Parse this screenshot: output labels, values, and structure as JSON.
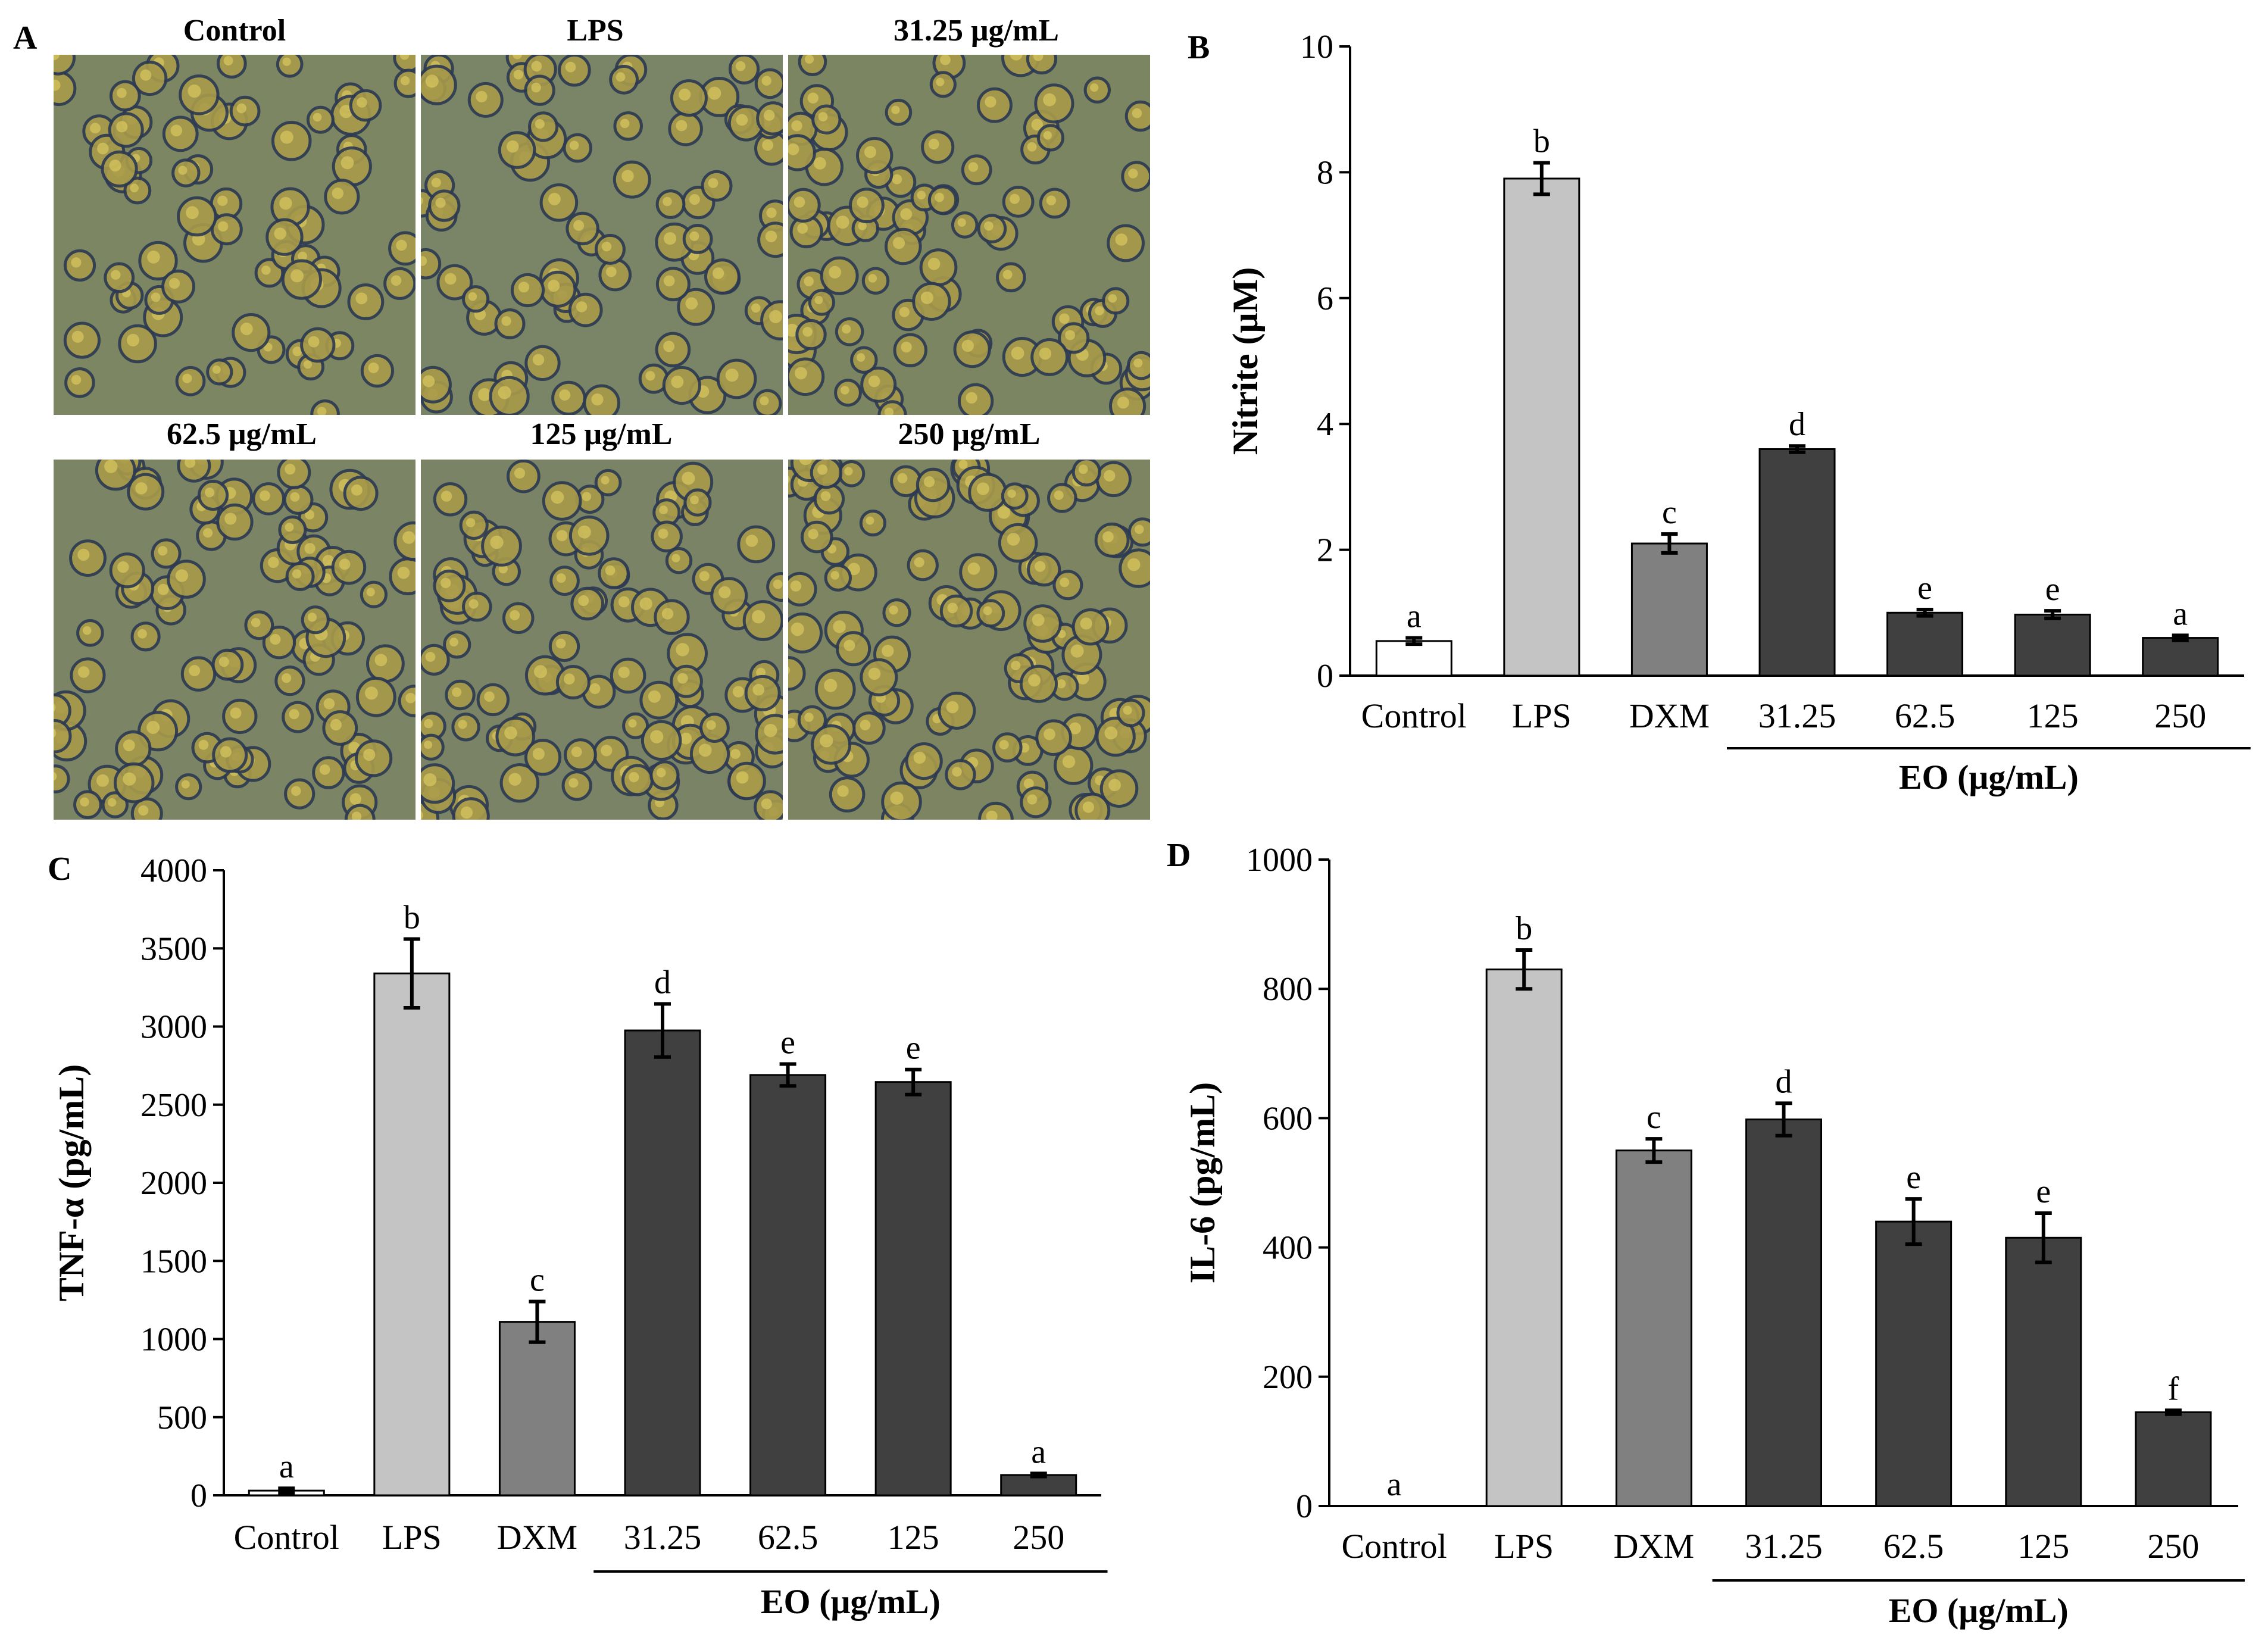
{
  "panel_letters": [
    "A",
    "B",
    "C",
    "D"
  ],
  "panel_a": {
    "images": [
      {
        "label": "Control",
        "bg": "#7d8663"
      },
      {
        "label": "LPS",
        "bg": "#7a8466"
      },
      {
        "label": "31.25 μg/mL",
        "bg": "#7c8562"
      },
      {
        "label": "62.5 μg/mL",
        "bg": "#7b8464"
      },
      {
        "label": "125 μg/mL",
        "bg": "#7a8365"
      },
      {
        "label": "250 μg/mL",
        "bg": "#7c8461"
      }
    ]
  },
  "colors": {
    "control": "#ffffff",
    "lps": "#c4c4c4",
    "dxm": "#808080",
    "eo": "#404040",
    "cell_fill": "#a89a4a",
    "cell_edge": "#2d3a52"
  },
  "chart_data": [
    {
      "panel": "B",
      "type": "bar",
      "categories": [
        "Control",
        "LPS",
        "DXM",
        "31.25",
        "62.5",
        "125",
        "250"
      ],
      "values": [
        0.55,
        7.9,
        2.1,
        3.6,
        1.0,
        0.97,
        0.6
      ],
      "errors": [
        0.05,
        0.25,
        0.15,
        0.05,
        0.05,
        0.06,
        0.04
      ],
      "significance": [
        "a",
        "b",
        "c",
        "d",
        "e",
        "e",
        "a"
      ],
      "ylabel": "Nitrite (μM)",
      "ylim": [
        0,
        10
      ],
      "yticks": [
        0,
        2,
        4,
        6,
        8,
        10
      ],
      "group_label": "EO (μg/mL)"
    },
    {
      "panel": "C",
      "type": "bar",
      "categories": [
        "Control",
        "LPS",
        "DXM",
        "31.25",
        "62.5",
        "125",
        "250"
      ],
      "values": [
        30,
        3340,
        1110,
        2975,
        2690,
        2645,
        130
      ],
      "errors": [
        15,
        220,
        130,
        170,
        70,
        80,
        10
      ],
      "significance": [
        "a",
        "b",
        "c",
        "d",
        "e",
        "e",
        "a"
      ],
      "ylabel": "TNF-α (pg/mL)",
      "ylim": [
        0,
        4000
      ],
      "yticks": [
        0,
        500,
        1000,
        1500,
        2000,
        2500,
        3000,
        3500,
        4000
      ],
      "group_label": "EO (μg/mL)"
    },
    {
      "panel": "D",
      "type": "bar",
      "categories": [
        "Control",
        "LPS",
        "DXM",
        "31.25",
        "62.5",
        "125",
        "250"
      ],
      "values": [
        0,
        830,
        550,
        598,
        440,
        415,
        145
      ],
      "errors": [
        0,
        30,
        18,
        25,
        35,
        38,
        3
      ],
      "significance": [
        "a",
        "b",
        "c",
        "d",
        "e",
        "e",
        "f"
      ],
      "ylabel": "IL-6 (pg/mL)",
      "ylim": [
        0,
        1000
      ],
      "yticks": [
        0,
        200,
        400,
        600,
        800,
        1000
      ],
      "group_label": "EO (μg/mL)"
    }
  ]
}
